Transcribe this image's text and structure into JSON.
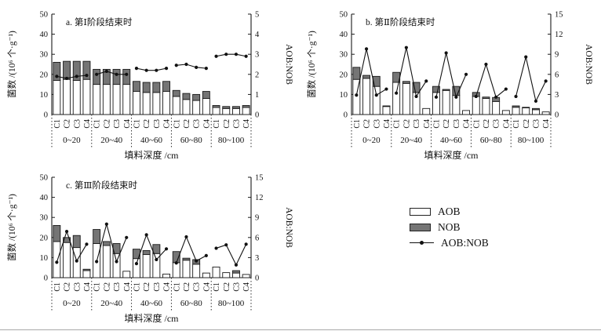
{
  "page": {
    "background": "#ffffff"
  },
  "colors": {
    "axis": "#1a1a1a",
    "line": "#111111",
    "aob_fill": "#ffffff",
    "nob_fill": "#757575"
  },
  "legend": {
    "items": [
      {
        "label": "AOB",
        "swatch": "white-bar"
      },
      {
        "label": "NOB",
        "swatch": "gray-bar"
      },
      {
        "label": "AOB:NOB",
        "swatch": "line-dot"
      }
    ]
  },
  "chart_data": [
    {
      "type": "bar",
      "title": "a. 第Ⅰ阶段结束时",
      "xlabel": "填料深度 /cm",
      "ylabel_left": "菌数 /(10⁶ 个·g⁻¹)",
      "ylabel_right": "AOB:NOB",
      "left_axis": {
        "min": 0,
        "max": 50,
        "ticks": [
          0,
          10,
          20,
          30,
          40,
          50
        ]
      },
      "right_axis": {
        "min": 0,
        "max": 5,
        "ticks": [
          0,
          1,
          2,
          3,
          4,
          5
        ]
      },
      "groups": [
        "0~20",
        "20~40",
        "40~60",
        "60~80",
        "80~100"
      ],
      "bar_labels": [
        "C1",
        "C2",
        "C3",
        "C4"
      ],
      "grid": false,
      "series": [
        {
          "name": "AOB",
          "series_type": "bar-stack-bottom",
          "values": [
            [
              17,
              17.5,
              17,
              17.5
            ],
            [
              15,
              15,
              15,
              15
            ],
            [
              11.5,
              11,
              11,
              11.5
            ],
            [
              9,
              7.5,
              7,
              8
            ],
            [
              3.5,
              3,
              3,
              3.5
            ]
          ]
        },
        {
          "name": "NOB",
          "series_type": "bar-stack-top",
          "values": [
            [
              9,
              9,
              9.5,
              9
            ],
            [
              7.5,
              7.5,
              7.5,
              7.5
            ],
            [
              5,
              5,
              5,
              5
            ],
            [
              3,
              3,
              3,
              3.5
            ],
            [
              1,
              1,
              1,
              1
            ]
          ]
        },
        {
          "name": "AOB:NOB",
          "series_type": "line",
          "axis": "right",
          "values": [
            [
              1.9,
              1.8,
              1.9,
              1.95
            ],
            [
              2.0,
              2.15,
              2.0,
              2.0
            ],
            [
              2.3,
              2.2,
              2.2,
              2.3
            ],
            [
              2.45,
              2.5,
              2.35,
              2.3
            ],
            [
              2.9,
              3.0,
              3.0,
              2.9
            ]
          ]
        }
      ]
    },
    {
      "type": "bar",
      "title": "b. 第Ⅱ阶段结束时",
      "xlabel": "填料深度 /cm",
      "ylabel_left": "菌数 /(10⁶ 个·g⁻¹)",
      "ylabel_right": "AOB:NOB",
      "left_axis": {
        "min": 0,
        "max": 50,
        "ticks": [
          0,
          10,
          20,
          30,
          40,
          50
        ]
      },
      "right_axis": {
        "min": 0,
        "max": 15,
        "ticks": [
          0,
          3,
          6,
          9,
          12,
          15
        ]
      },
      "groups": [
        "0~20",
        "20~40",
        "40~60",
        "60~80",
        "80~100"
      ],
      "bar_labels": [
        "C1",
        "C2",
        "C3",
        "C4"
      ],
      "grid": false,
      "series": [
        {
          "name": "AOB",
          "series_type": "bar-stack-bottom",
          "values": [
            [
              17.5,
              18,
              14,
              4
            ],
            [
              16,
              15.5,
              11,
              3
            ],
            [
              11,
              12,
              9.5,
              2
            ],
            [
              9,
              8,
              6.5,
              2
            ],
            [
              3.6,
              3.3,
              2.4,
              1.3
            ]
          ]
        },
        {
          "name": "NOB",
          "series_type": "bar-stack-top",
          "values": [
            [
              6,
              1.5,
              5,
              0.3
            ],
            [
              5,
              1,
              5,
              0
            ],
            [
              3,
              0.5,
              4.5,
              0
            ],
            [
              2,
              0.7,
              2,
              0
            ],
            [
              0.7,
              0.3,
              0.6,
              0
            ]
          ]
        },
        {
          "name": "AOB:NOB",
          "series_type": "line",
          "axis": "right",
          "values": [
            [
              2.9,
              9.8,
              2.9,
              3.8
            ],
            [
              3.2,
              10.0,
              2.7,
              5.0
            ],
            [
              2.6,
              9.2,
              2.6,
              6.0
            ],
            [
              2.7,
              7.5,
              2.6,
              3.8
            ],
            [
              2.7,
              8.6,
              2.0,
              5.0
            ]
          ]
        }
      ]
    },
    {
      "type": "bar",
      "title": "c. 第Ⅲ阶段结束时",
      "xlabel": "填料深度 /cm",
      "ylabel_left": "菌数 /(10⁶ 个·g⁻¹)",
      "ylabel_right": "AOB:NOB",
      "left_axis": {
        "min": 0,
        "max": 50,
        "ticks": [
          0,
          10,
          20,
          30,
          40,
          50
        ]
      },
      "right_axis": {
        "min": 0,
        "max": 15,
        "ticks": [
          0,
          3,
          6,
          9,
          12,
          15
        ]
      },
      "groups": [
        "0~20",
        "20~40",
        "40~60",
        "60~80",
        "80~100"
      ],
      "bar_labels": [
        "C1",
        "C2",
        "C3",
        "C4"
      ],
      "grid": false,
      "series": [
        {
          "name": "AOB",
          "series_type": "bar-stack-bottom",
          "values": [
            [
              18,
              17.5,
              15,
              3.5
            ],
            [
              17,
              16,
              12,
              3.2
            ],
            [
              9.5,
              11.5,
              12,
              1.8
            ],
            [
              7.5,
              8.7,
              6.7,
              2.3
            ],
            [
              5.3,
              2.5,
              2.3,
              1.6
            ]
          ]
        },
        {
          "name": "NOB",
          "series_type": "bar-stack-top",
          "values": [
            [
              8,
              2.5,
              6,
              0.7
            ],
            [
              7,
              2,
              5,
              0
            ],
            [
              4.7,
              2,
              4.5,
              0
            ],
            [
              5.5,
              1,
              2.3,
              0
            ],
            [
              0,
              0,
              1.2,
              0
            ]
          ]
        },
        {
          "name": "AOB:NOB",
          "series_type": "line",
          "axis": "right",
          "values": [
            [
              2.3,
              6.9,
              2.5,
              5.0
            ],
            [
              2.4,
              8.0,
              2.4,
              6.0
            ],
            [
              2.1,
              6.4,
              2.7,
              4.3
            ],
            [
              2.2,
              6.1,
              2.5,
              3.3
            ],
            [
              4.4,
              4.9,
              1.9,
              5.0
            ]
          ]
        }
      ]
    }
  ]
}
